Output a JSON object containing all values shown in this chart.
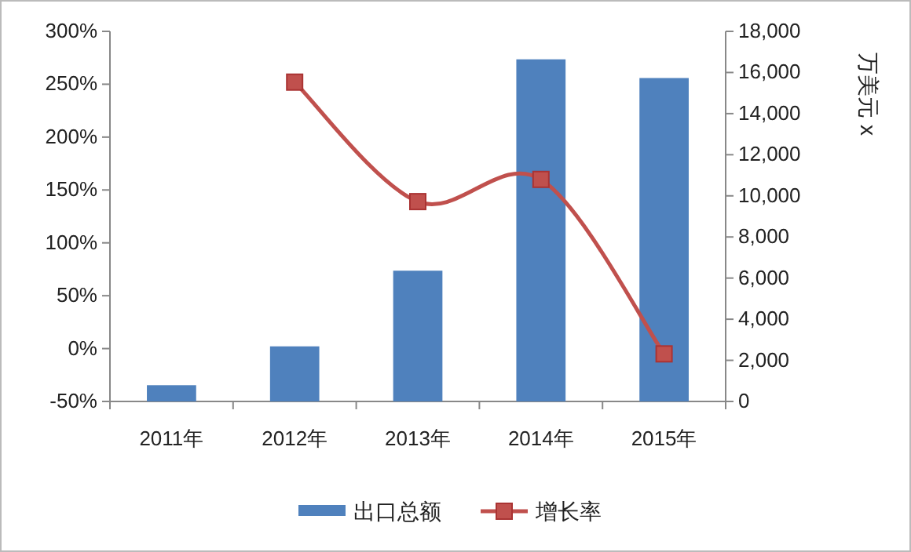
{
  "chart_data": {
    "type": "bar",
    "categories": [
      "2011年",
      "2012年",
      "2013年",
      "2014年",
      "2015年"
    ],
    "series": [
      {
        "name": "出口总额",
        "axis": "y2",
        "color": "#4f81bd",
        "values": [
          790,
          2680,
          6360,
          16640,
          15730
        ]
      },
      {
        "name": "增长率",
        "type": "line",
        "axis": "y",
        "color": "#c0504d",
        "marker": "square",
        "values": [
          null,
          252,
          139,
          160,
          -5
        ]
      }
    ],
    "ylim": [
      -50,
      300
    ],
    "yticks": [
      {
        "value": -50,
        "label": "-50%"
      },
      {
        "value": 0,
        "label": "0%"
      },
      {
        "value": 50,
        "label": "50%"
      },
      {
        "value": 100,
        "label": "100%"
      },
      {
        "value": 150,
        "label": "150%"
      },
      {
        "value": 200,
        "label": "200%"
      },
      {
        "value": 250,
        "label": "250%"
      },
      {
        "value": 300,
        "label": "300%"
      }
    ],
    "y2lim": [
      0,
      18000
    ],
    "y2ticks": [
      {
        "value": 0,
        "label": "0"
      },
      {
        "value": 2000,
        "label": "2,000"
      },
      {
        "value": 4000,
        "label": "4,000"
      },
      {
        "value": 6000,
        "label": "6,000"
      },
      {
        "value": 8000,
        "label": "8,000"
      },
      {
        "value": 10000,
        "label": "10,000"
      },
      {
        "value": 12000,
        "label": "12,000"
      },
      {
        "value": 14000,
        "label": "14,000"
      },
      {
        "value": 16000,
        "label": "16,000"
      },
      {
        "value": 18000,
        "label": "18,000"
      }
    ],
    "y2label": "万美元 x",
    "grid": false,
    "legend": "bottom"
  }
}
